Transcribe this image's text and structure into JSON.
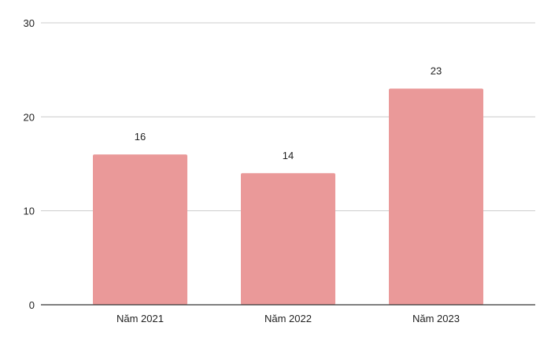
{
  "chart_data": {
    "type": "bar",
    "title": "",
    "xlabel": "",
    "ylabel": "",
    "categories": [
      "Năm 2021",
      "Năm 2022",
      "Năm 2023"
    ],
    "values": [
      16,
      14,
      23
    ],
    "ylim": [
      0,
      30
    ],
    "yticks": [
      0,
      10,
      20,
      30
    ],
    "grid": true,
    "legend": "none",
    "data_labels": true,
    "bar_color": "#ea9999"
  }
}
